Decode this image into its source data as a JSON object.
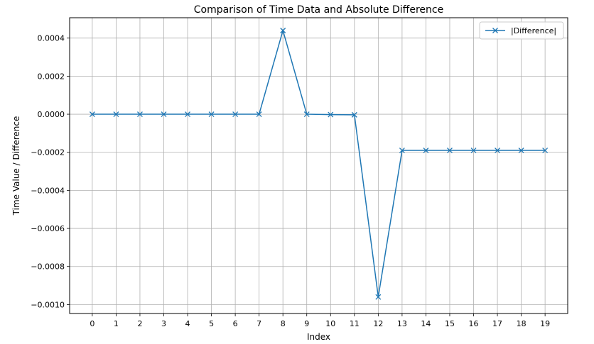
{
  "chart_data": {
    "type": "line",
    "title": "Comparison of Time Data and Absolute Difference",
    "xlabel": "Index",
    "ylabel": "Time Value / Difference",
    "x": [
      0,
      1,
      2,
      3,
      4,
      5,
      6,
      7,
      8,
      9,
      10,
      11,
      12,
      13,
      14,
      15,
      16,
      17,
      18,
      19
    ],
    "xticks": [
      "0",
      "1",
      "2",
      "3",
      "4",
      "5",
      "6",
      "7",
      "8",
      "9",
      "10",
      "11",
      "12",
      "13",
      "14",
      "15",
      "16",
      "17",
      "18",
      "19"
    ],
    "series": [
      {
        "name": "|Difference|",
        "color": "#1f77b4",
        "marker": "x",
        "values": [
          0.0,
          0.0,
          0.0,
          0.0,
          0.0,
          0.0,
          0.0,
          0.0,
          0.00044,
          0.0,
          -2e-06,
          -3e-06,
          -0.00096,
          -0.00019,
          -0.00019,
          -0.00019,
          -0.00019,
          -0.00019,
          -0.00019,
          -0.00019
        ]
      }
    ],
    "yticks": [
      0.0004,
      0.0002,
      0.0,
      -0.0002,
      -0.0004,
      -0.0006,
      -0.0008,
      -0.001
    ],
    "ytick_labels": [
      "0.0004",
      "0.0002",
      "0.0000",
      "−0.0002",
      "−0.0004",
      "−0.0006",
      "−0.0008",
      "−0.0010"
    ],
    "ylim": [
      -0.001047,
      0.000507
    ],
    "xlim": [
      -0.95,
      19.95
    ],
    "grid": true,
    "legend_position": "top-right"
  }
}
